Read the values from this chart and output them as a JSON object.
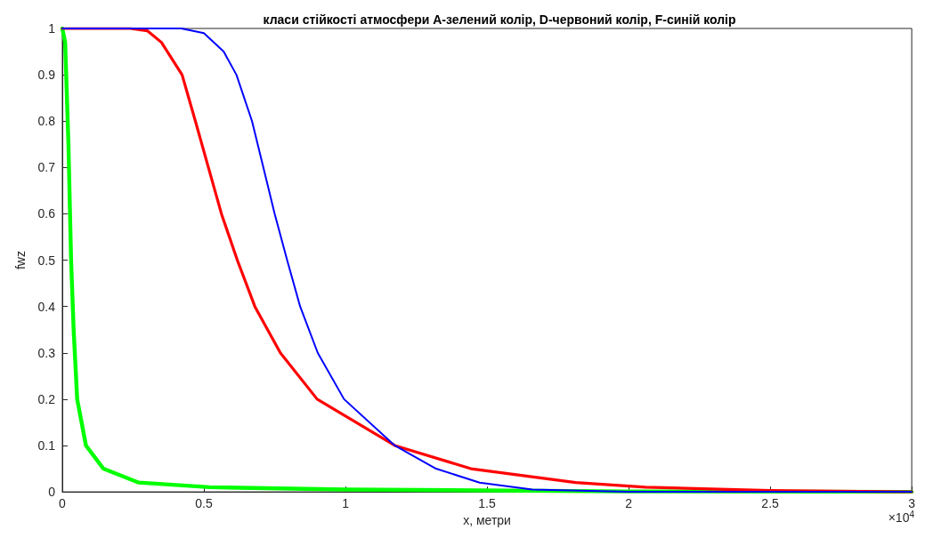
{
  "chart_data": {
    "type": "line",
    "title": "класи стійкості атмосфери A-зелений колір, D-червоний колір, F-синій колір",
    "xlabel": "x, метри",
    "ylabel": "fwz",
    "xlim": [
      0,
      3
    ],
    "ylim": [
      0,
      1
    ],
    "xticks": [
      0,
      0.5,
      1,
      1.5,
      2,
      2.5,
      3
    ],
    "yticks": [
      0,
      0.1,
      0.2,
      0.3,
      0.4,
      0.5,
      0.6,
      0.7,
      0.8,
      0.9,
      1
    ],
    "annotations": [
      "×10$^{4}$"
    ],
    "grid": false,
    "marker": "none",
    "line_style": "solid",
    "series": [
      {
        "color": "#00ff00",
        "x": [
          0,
          0.01,
          0.0216,
          0.031,
          0.04,
          0.0525,
          0.0835,
          0.145,
          0.27,
          0.52,
          1,
          2,
          3
        ],
        "values": [
          1,
          0.97,
          0.75,
          0.5,
          0.35,
          0.2,
          0.1,
          0.05,
          0.02,
          0.01,
          0.005,
          0.001,
          0
        ]
      },
      {
        "color": "#ff0000",
        "x": [
          0,
          0.24,
          0.3,
          0.35,
          0.423,
          0.47,
          0.516,
          0.562,
          0.618,
          0.68,
          0.77,
          0.9,
          1.174,
          1.443,
          1.813,
          2.06,
          2.5,
          3
        ],
        "values": [
          1,
          1,
          0.995,
          0.97,
          0.9,
          0.8,
          0.7,
          0.6,
          0.5,
          0.4,
          0.3,
          0.2,
          0.1,
          0.05,
          0.02,
          0.01,
          0.003,
          0
        ]
      },
      {
        "color": "#0000ff",
        "x": [
          0,
          0.42,
          0.5,
          0.57,
          0.615,
          0.67,
          0.71,
          0.75,
          0.794,
          0.84,
          0.902,
          0.995,
          1.174,
          1.32,
          1.474,
          1.66,
          2,
          3
        ],
        "values": [
          1,
          1,
          0.99,
          0.95,
          0.9,
          0.8,
          0.7,
          0.6,
          0.5,
          0.4,
          0.3,
          0.2,
          0.1,
          0.05,
          0.02,
          0.005,
          0,
          0
        ]
      }
    ]
  }
}
